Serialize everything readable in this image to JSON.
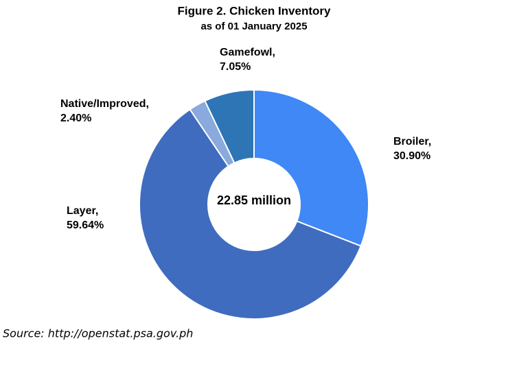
{
  "chart_data": {
    "type": "donut",
    "title": "Figure 2. Chicken Inventory",
    "subtitle": "as of 01 January 2025",
    "center_label": "22.85 million",
    "categories": [
      "Broiler,",
      "Layer,",
      "Native/Improved,",
      "Gamefowl,"
    ],
    "values": [
      30.9,
      59.64,
      2.4,
      7.05
    ],
    "value_labels": [
      "30.90%",
      "59.64%",
      "2.40%",
      "7.05%"
    ],
    "colors": [
      "#3f88f5",
      "#3f6cbf",
      "#8aa9dc",
      "#2e75b6"
    ],
    "source": "Source: http://openstat.psa.gov.ph"
  }
}
